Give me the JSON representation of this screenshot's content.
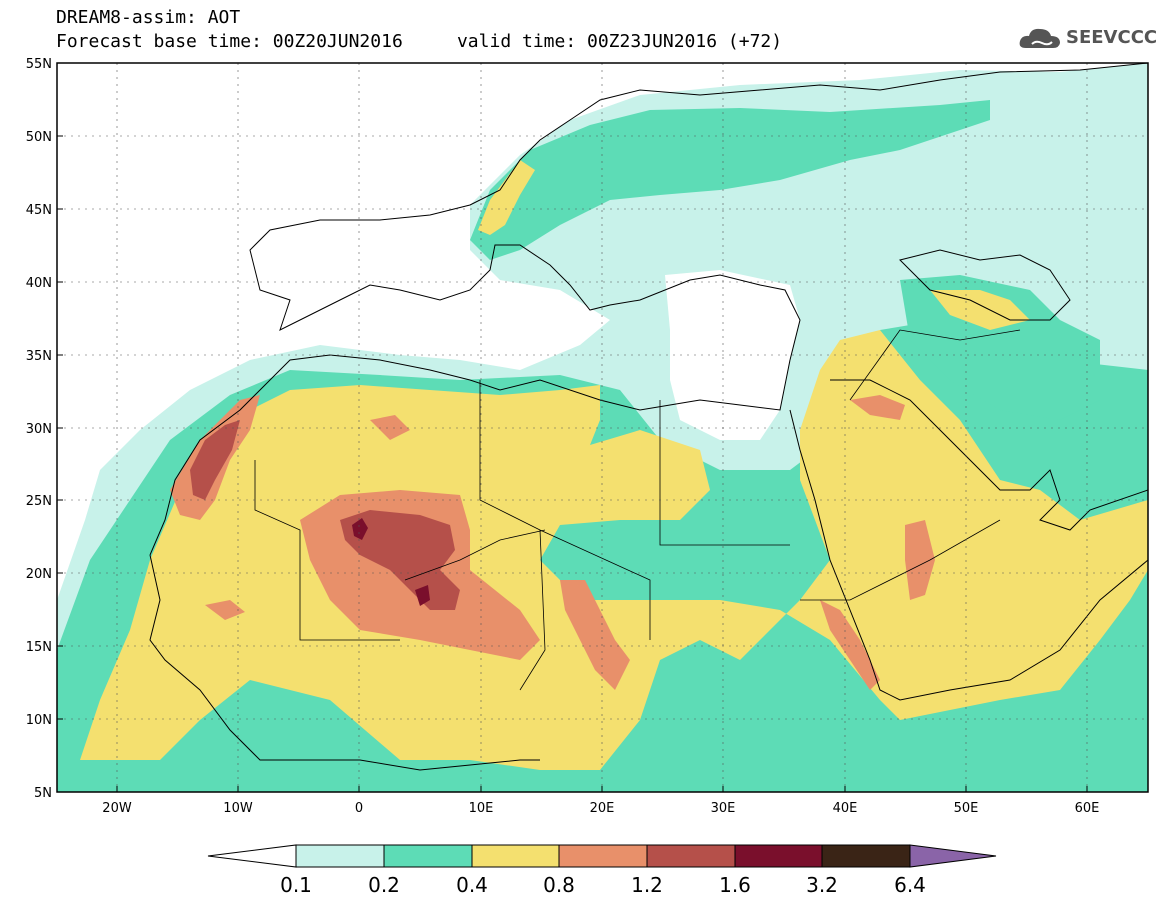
{
  "header": {
    "line1": "DREAM8-assim: AOT",
    "line2": "Forecast base time: 00Z20JUN2016     valid time: 00Z23JUN2016 (+72)",
    "logo_text": "SEEVCCC",
    "logo_icon": "cloud-icon"
  },
  "map": {
    "lat_labels": [
      "55N",
      "50N",
      "45N",
      "40N",
      "35N",
      "30N",
      "25N",
      "20N",
      "15N",
      "10N",
      "5N"
    ],
    "lon_labels": [
      "20W",
      "10W",
      "0",
      "10E",
      "20E",
      "30E",
      "40E",
      "50E",
      "60E"
    ],
    "lat_range": [
      5,
      55
    ],
    "lon_range": [
      -25,
      65
    ],
    "grid": true
  },
  "colorbar": {
    "ticks": [
      "0.1",
      "0.2",
      "0.4",
      "0.8",
      "1.2",
      "1.6",
      "3.2",
      "6.4"
    ],
    "colors": [
      "#ffffff",
      "#c8f2ea",
      "#5ddcb6",
      "#f4e06f",
      "#e8906a",
      "#b5504a",
      "#7a0f2c",
      "#3a2416",
      "#8a64a8"
    ]
  },
  "level_colors": {
    "lvl1": "#c8f2ea",
    "lvl2": "#5ddcb6",
    "lvl3": "#f4e06f",
    "lvl4": "#e8906a",
    "lvl5": "#b5504a",
    "lvl6": "#7a0f2c"
  }
}
